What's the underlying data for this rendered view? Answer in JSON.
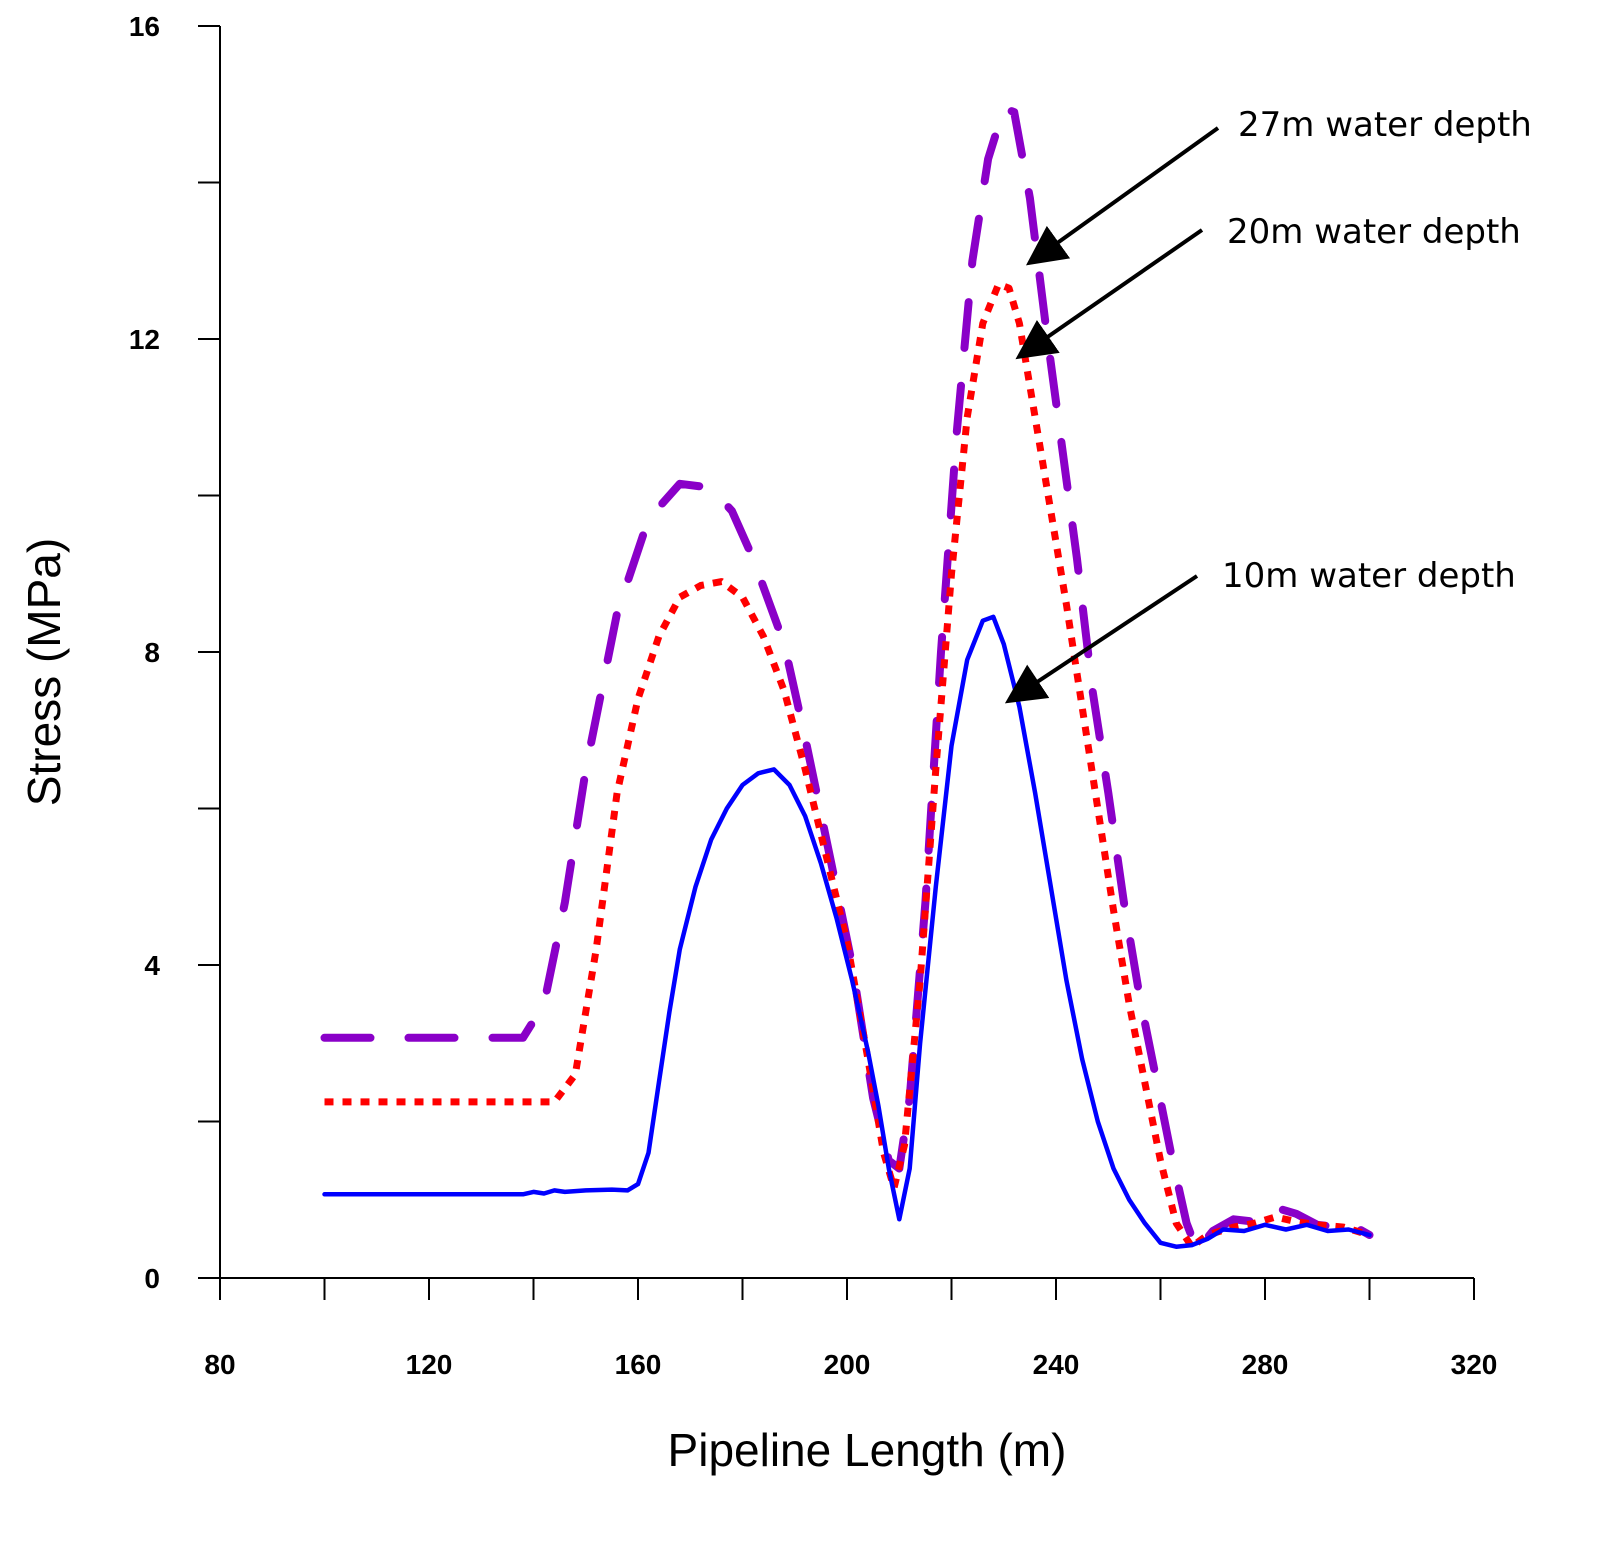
{
  "chart_data": {
    "type": "line",
    "title": "",
    "xlabel": "Pipeline Length (m)",
    "ylabel": "Stress (MPa)",
    "xlim": [
      80,
      320
    ],
    "ylim": [
      0,
      16
    ],
    "x_major_ticks": [
      80,
      120,
      160,
      200,
      240,
      280,
      320
    ],
    "x_minor_ticks": [
      100,
      140,
      180,
      220,
      260,
      300
    ],
    "y_major_ticks": [
      0,
      4,
      8,
      12,
      16
    ],
    "y_minor_ticks": [
      2,
      6,
      10,
      14
    ],
    "x_tick_labels": [
      "80",
      "120",
      "160",
      "200",
      "240",
      "280",
      "320"
    ],
    "y_tick_labels": [
      "0",
      "4",
      "8",
      "12",
      "16"
    ],
    "grid": false,
    "legend": "none",
    "series": [
      {
        "name": "27m water depth",
        "color": "#8a00c8",
        "style": "dashed",
        "points": [
          [
            100,
            3.07
          ],
          [
            120,
            3.07
          ],
          [
            138,
            3.07
          ],
          [
            142,
            3.5
          ],
          [
            146,
            4.8
          ],
          [
            150,
            6.5
          ],
          [
            156,
            8.5
          ],
          [
            162,
            9.7
          ],
          [
            168,
            10.15
          ],
          [
            174,
            10.1
          ],
          [
            178,
            9.8
          ],
          [
            182,
            9.2
          ],
          [
            188,
            8.1
          ],
          [
            192,
            6.9
          ],
          [
            197,
            5.3
          ],
          [
            201,
            4.0
          ],
          [
            205,
            2.3
          ],
          [
            208,
            1.5
          ],
          [
            210,
            1.4
          ],
          [
            212,
            2.3
          ],
          [
            215,
            4.8
          ],
          [
            218,
            8.0
          ],
          [
            221,
            10.8
          ],
          [
            224,
            13.0
          ],
          [
            227,
            14.3
          ],
          [
            230,
            14.95
          ],
          [
            232,
            14.9
          ],
          [
            235,
            13.8
          ],
          [
            238,
            12.2
          ],
          [
            241,
            10.7
          ],
          [
            244,
            9.2
          ],
          [
            247,
            7.5
          ],
          [
            250,
            6.2
          ],
          [
            253,
            4.8
          ],
          [
            256,
            3.6
          ],
          [
            259,
            2.6
          ],
          [
            262,
            1.6
          ],
          [
            265,
            0.7
          ],
          [
            267,
            0.35
          ],
          [
            270,
            0.6
          ],
          [
            274,
            0.75
          ],
          [
            278,
            0.72
          ],
          [
            282,
            0.9
          ],
          [
            286,
            0.82
          ],
          [
            290,
            0.68
          ],
          [
            294,
            0.65
          ],
          [
            296,
            0.7
          ],
          [
            300,
            0.55
          ]
        ]
      },
      {
        "name": "20m water depth",
        "color": "#ff0000",
        "style": "dotted",
        "points": [
          [
            100,
            2.25
          ],
          [
            120,
            2.25
          ],
          [
            144,
            2.25
          ],
          [
            148,
            2.6
          ],
          [
            152,
            4.2
          ],
          [
            156,
            6.2
          ],
          [
            160,
            7.4
          ],
          [
            164,
            8.2
          ],
          [
            168,
            8.7
          ],
          [
            172,
            8.85
          ],
          [
            176,
            8.9
          ],
          [
            180,
            8.7
          ],
          [
            184,
            8.2
          ],
          [
            188,
            7.5
          ],
          [
            192,
            6.5
          ],
          [
            196,
            5.4
          ],
          [
            200,
            4.3
          ],
          [
            204,
            2.8
          ],
          [
            207,
            1.6
          ],
          [
            209,
            1.15
          ],
          [
            211,
            1.7
          ],
          [
            214,
            3.8
          ],
          [
            217,
            6.5
          ],
          [
            220,
            9.0
          ],
          [
            223,
            11.0
          ],
          [
            226,
            12.2
          ],
          [
            229,
            12.7
          ],
          [
            231,
            12.65
          ],
          [
            233,
            12.2
          ],
          [
            236,
            11.0
          ],
          [
            239,
            9.8
          ],
          [
            242,
            8.6
          ],
          [
            245,
            7.3
          ],
          [
            248,
            6.0
          ],
          [
            251,
            4.7
          ],
          [
            254,
            3.5
          ],
          [
            257,
            2.5
          ],
          [
            260,
            1.5
          ],
          [
            263,
            0.7
          ],
          [
            266,
            0.4
          ],
          [
            269,
            0.55
          ],
          [
            274,
            0.65
          ],
          [
            278,
            0.7
          ],
          [
            282,
            0.78
          ],
          [
            286,
            0.72
          ],
          [
            290,
            0.68
          ],
          [
            295,
            0.65
          ],
          [
            300,
            0.55
          ]
        ]
      },
      {
        "name": "10m water depth",
        "color": "#0000ff",
        "style": "solid",
        "points": [
          [
            100,
            1.07
          ],
          [
            130,
            1.07
          ],
          [
            138,
            1.07
          ],
          [
            140,
            1.1
          ],
          [
            142,
            1.08
          ],
          [
            144,
            1.12
          ],
          [
            146,
            1.1
          ],
          [
            150,
            1.12
          ],
          [
            155,
            1.13
          ],
          [
            158,
            1.12
          ],
          [
            160,
            1.2
          ],
          [
            162,
            1.6
          ],
          [
            164,
            2.5
          ],
          [
            166,
            3.4
          ],
          [
            168,
            4.2
          ],
          [
            171,
            5.0
          ],
          [
            174,
            5.6
          ],
          [
            177,
            6.0
          ],
          [
            180,
            6.3
          ],
          [
            183,
            6.45
          ],
          [
            186,
            6.5
          ],
          [
            189,
            6.3
          ],
          [
            192,
            5.9
          ],
          [
            195,
            5.3
          ],
          [
            198,
            4.6
          ],
          [
            201,
            3.8
          ],
          [
            204,
            2.9
          ],
          [
            206,
            2.2
          ],
          [
            208,
            1.4
          ],
          [
            210,
            0.75
          ],
          [
            212,
            1.4
          ],
          [
            214,
            3.0
          ],
          [
            217,
            5.0
          ],
          [
            220,
            6.8
          ],
          [
            223,
            7.9
          ],
          [
            226,
            8.4
          ],
          [
            228,
            8.45
          ],
          [
            230,
            8.1
          ],
          [
            233,
            7.3
          ],
          [
            236,
            6.2
          ],
          [
            239,
            5.0
          ],
          [
            242,
            3.8
          ],
          [
            245,
            2.8
          ],
          [
            248,
            2.0
          ],
          [
            251,
            1.4
          ],
          [
            254,
            1.0
          ],
          [
            257,
            0.7
          ],
          [
            260,
            0.45
          ],
          [
            263,
            0.4
          ],
          [
            266,
            0.42
          ],
          [
            269,
            0.5
          ],
          [
            272,
            0.62
          ],
          [
            276,
            0.6
          ],
          [
            280,
            0.68
          ],
          [
            284,
            0.62
          ],
          [
            288,
            0.68
          ],
          [
            292,
            0.6
          ],
          [
            296,
            0.62
          ],
          [
            300,
            0.55
          ]
        ]
      }
    ],
    "annotations": [
      {
        "text": "27m water depth",
        "arrow_to": [
          235.5,
          13.0
        ]
      },
      {
        "text": "20m water depth",
        "arrow_to": [
          233.5,
          11.8
        ]
      },
      {
        "text": "10m water depth",
        "arrow_to": [
          231.5,
          7.4
        ]
      }
    ]
  }
}
